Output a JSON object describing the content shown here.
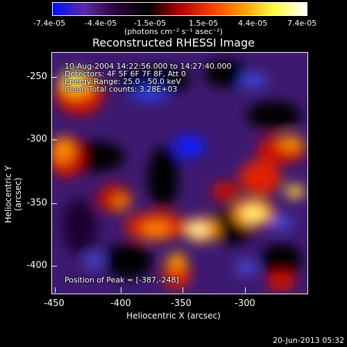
{
  "title": "Reconstructed RHESSI Image",
  "colorbar": {
    "tick_labels": [
      "-7.4e-05",
      "-4.4e-05",
      "-1.5e-05",
      "1.5e-05",
      "4.4e-05",
      "7.4e-05"
    ],
    "units": "(photons cm⁻² s⁻¹ asec⁻²)",
    "colormap": [
      "#0010ff",
      "#5a2aa8",
      "#2a003a",
      "#000000",
      "#b00000",
      "#ff3a00",
      "#ff9a00",
      "#ffff40",
      "#ffffff"
    ]
  },
  "annotations": {
    "time_range": "10-Aug-2004 14:22:56.000 to 14:27:40.000",
    "detectors": "Detectors: 4F 5F 6F 7F 8F, Att 0",
    "energy": "Energy Range: 25.0 - 50.0 keV",
    "method": "Clean    Total counts: 3.28E+03",
    "peak": "Position of Peak = [-387,-248]"
  },
  "axes": {
    "xlabel": "Heliocentric X (arcsec)",
    "ylabel": "Heliocentric Y (arcsec)",
    "x_ticks": [
      "-450",
      "-400",
      "-350",
      "-300"
    ],
    "y_ticks": [
      "-250",
      "-300",
      "-350",
      "-400"
    ]
  },
  "footer": "20-Jun-2013 05:32"
}
